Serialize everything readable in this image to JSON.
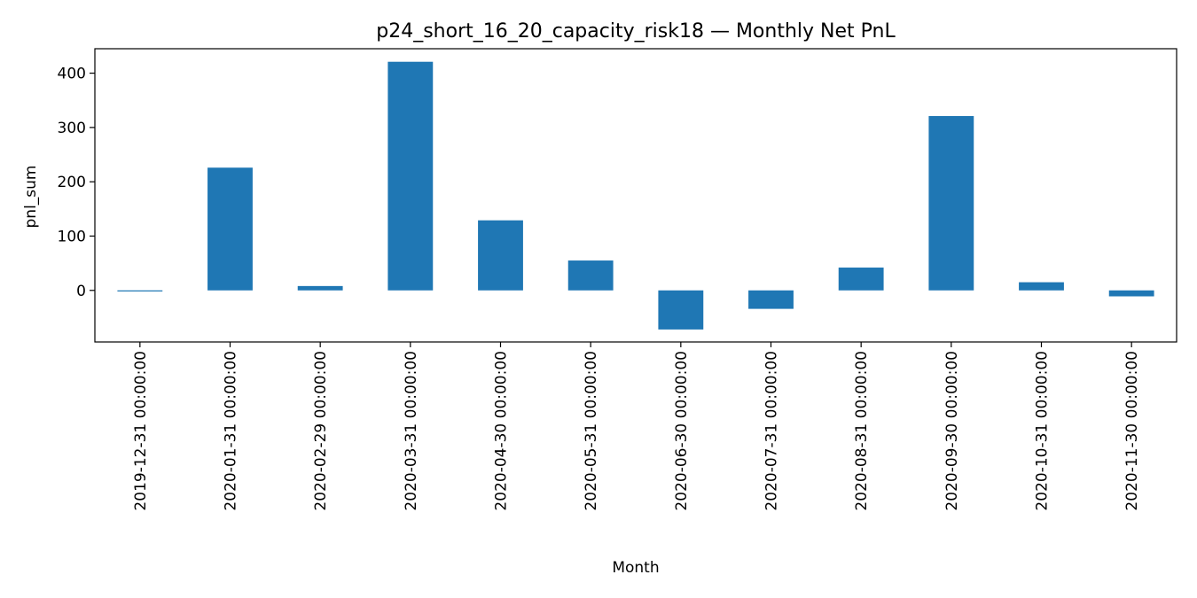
{
  "chart_data": {
    "type": "bar",
    "title": "p24_short_16_20_capacity_risk18 — Monthly Net PnL",
    "xlabel": "Month",
    "ylabel": "pnl_sum",
    "categories": [
      "2019-12-31 00:00:00",
      "2020-01-31 00:00:00",
      "2020-02-29 00:00:00",
      "2020-03-31 00:00:00",
      "2020-04-30 00:00:00",
      "2020-05-31 00:00:00",
      "2020-06-30 00:00:00",
      "2020-07-31 00:00:00",
      "2020-08-31 00:00:00",
      "2020-09-30 00:00:00",
      "2020-10-31 00:00:00",
      "2020-11-30 00:00:00"
    ],
    "values": [
      -2,
      226,
      8,
      421,
      129,
      55,
      -72,
      -34,
      42,
      321,
      15,
      -11
    ],
    "ylim": [
      -95,
      445
    ],
    "yticks": [
      0,
      100,
      200,
      300,
      400
    ],
    "grid": false,
    "legend": "none",
    "bar_color": "#1f77b4"
  }
}
